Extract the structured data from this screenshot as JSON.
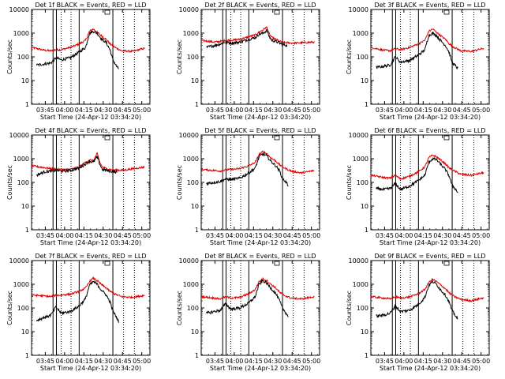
{
  "chart_data": {
    "type": "line",
    "panel_count": 9,
    "xlabel": "Start Time (24-Apr-12 03:34:20)",
    "ylabel": "Counts/sec",
    "x_ticks": [
      "03:45",
      "04:00",
      "04:15",
      "04:30",
      "04:45",
      "05:00"
    ],
    "x_tick_minutes": [
      10.67,
      25.67,
      40.67,
      55.67,
      70.67,
      85.67
    ],
    "x_range_minutes": [
      0,
      92
    ],
    "y_scale": "log",
    "ylim": [
      1,
      10000
    ],
    "y_ticks": [
      "1",
      "10",
      "100",
      "1000",
      "10000"
    ],
    "grid": false,
    "series_colors": {
      "events": "#000000",
      "lld": "#e00000"
    },
    "vertical_solid_minutes": [
      16.7,
      19.3,
      37.0,
      63.2
    ],
    "vertical_dotted_minutes": [
      23.0,
      30.7,
      71.5,
      80.0
    ],
    "panels": [
      {
        "title": "Det 1f BLACK = Events, RED = LLD",
        "events": [
          [
            4,
            45
          ],
          [
            10,
            50
          ],
          [
            15,
            55
          ],
          [
            19,
            90
          ],
          [
            23,
            75
          ],
          [
            30,
            90
          ],
          [
            37,
            160
          ],
          [
            42,
            250
          ],
          [
            45,
            1000
          ],
          [
            48,
            1200
          ],
          [
            51,
            1000
          ],
          [
            54,
            600
          ],
          [
            58,
            400
          ],
          [
            61,
            200
          ],
          [
            63,
            80
          ],
          [
            66,
            40
          ],
          [
            68,
            30
          ]
        ],
        "lld": [
          [
            0,
            250
          ],
          [
            10,
            190
          ],
          [
            15,
            180
          ],
          [
            19,
            200
          ],
          [
            23,
            200
          ],
          [
            30,
            250
          ],
          [
            37,
            350
          ],
          [
            42,
            500
          ],
          [
            45,
            1200
          ],
          [
            48,
            1500
          ],
          [
            51,
            1100
          ],
          [
            54,
            800
          ],
          [
            58,
            550
          ],
          [
            61,
            350
          ],
          [
            65,
            250
          ],
          [
            70,
            180
          ],
          [
            78,
            170
          ],
          [
            88,
            230
          ]
        ]
      },
      {
        "title": "Det 2f BLACK = Events, RED = LLD",
        "events": [
          [
            4,
            250
          ],
          [
            10,
            300
          ],
          [
            15,
            350
          ],
          [
            19,
            420
          ],
          [
            23,
            380
          ],
          [
            30,
            420
          ],
          [
            37,
            550
          ],
          [
            42,
            650
          ],
          [
            45,
            900
          ],
          [
            48,
            1000
          ],
          [
            51,
            1300
          ],
          [
            53,
            700
          ],
          [
            55,
            500
          ],
          [
            58,
            450
          ],
          [
            61,
            380
          ],
          [
            64,
            330
          ],
          [
            67,
            300
          ]
        ],
        "lld": [
          [
            0,
            500
          ],
          [
            10,
            420
          ],
          [
            15,
            450
          ],
          [
            19,
            500
          ],
          [
            23,
            500
          ],
          [
            30,
            550
          ],
          [
            37,
            700
          ],
          [
            42,
            850
          ],
          [
            45,
            1100
          ],
          [
            48,
            1400
          ],
          [
            51,
            1800
          ],
          [
            53,
            900
          ],
          [
            55,
            650
          ],
          [
            58,
            550
          ],
          [
            61,
            450
          ],
          [
            65,
            400
          ],
          [
            72,
            380
          ],
          [
            88,
            420
          ]
        ]
      },
      {
        "title": "Det 3f BLACK = Events, RED = LLD",
        "events": [
          [
            4,
            35
          ],
          [
            10,
            40
          ],
          [
            15,
            45
          ],
          [
            19,
            100
          ],
          [
            23,
            60
          ],
          [
            30,
            70
          ],
          [
            37,
            120
          ],
          [
            42,
            200
          ],
          [
            45,
            800
          ],
          [
            48,
            1000
          ],
          [
            51,
            800
          ],
          [
            54,
            500
          ],
          [
            58,
            300
          ],
          [
            61,
            150
          ],
          [
            63,
            60
          ],
          [
            66,
            40
          ],
          [
            68,
            30
          ]
        ],
        "lld": [
          [
            0,
            250
          ],
          [
            10,
            190
          ],
          [
            15,
            180
          ],
          [
            19,
            220
          ],
          [
            23,
            200
          ],
          [
            30,
            250
          ],
          [
            37,
            350
          ],
          [
            42,
            500
          ],
          [
            45,
            1200
          ],
          [
            48,
            1500
          ],
          [
            51,
            1100
          ],
          [
            54,
            800
          ],
          [
            58,
            550
          ],
          [
            61,
            350
          ],
          [
            65,
            250
          ],
          [
            70,
            180
          ],
          [
            78,
            170
          ],
          [
            88,
            230
          ]
        ]
      },
      {
        "title": "Det 4f BLACK = Events, RED = LLD",
        "events": [
          [
            4,
            200
          ],
          [
            10,
            280
          ],
          [
            15,
            300
          ],
          [
            19,
            320
          ],
          [
            23,
            300
          ],
          [
            30,
            320
          ],
          [
            37,
            400
          ],
          [
            42,
            600
          ],
          [
            45,
            800
          ],
          [
            48,
            700
          ],
          [
            51,
            1200
          ],
          [
            53,
            600
          ],
          [
            55,
            350
          ],
          [
            58,
            330
          ],
          [
            61,
            300
          ],
          [
            64,
            280
          ],
          [
            67,
            260
          ]
        ],
        "lld": [
          [
            0,
            500
          ],
          [
            10,
            420
          ],
          [
            15,
            380
          ],
          [
            19,
            360
          ],
          [
            23,
            340
          ],
          [
            30,
            360
          ],
          [
            37,
            450
          ],
          [
            42,
            700
          ],
          [
            45,
            900
          ],
          [
            48,
            800
          ],
          [
            51,
            1700
          ],
          [
            53,
            700
          ],
          [
            55,
            450
          ],
          [
            58,
            380
          ],
          [
            61,
            350
          ],
          [
            65,
            330
          ],
          [
            72,
            330
          ],
          [
            88,
            450
          ]
        ]
      },
      {
        "title": "Det 5f BLACK = Events, RED = LLD",
        "events": [
          [
            4,
            90
          ],
          [
            10,
            100
          ],
          [
            15,
            110
          ],
          [
            19,
            140
          ],
          [
            23,
            130
          ],
          [
            30,
            150
          ],
          [
            37,
            250
          ],
          [
            42,
            400
          ],
          [
            45,
            1200
          ],
          [
            48,
            1600
          ],
          [
            51,
            1300
          ],
          [
            54,
            800
          ],
          [
            58,
            500
          ],
          [
            61,
            300
          ],
          [
            63,
            150
          ],
          [
            66,
            100
          ],
          [
            68,
            70
          ]
        ],
        "lld": [
          [
            0,
            350
          ],
          [
            10,
            320
          ],
          [
            15,
            300
          ],
          [
            19,
            340
          ],
          [
            23,
            350
          ],
          [
            30,
            380
          ],
          [
            37,
            500
          ],
          [
            42,
            700
          ],
          [
            45,
            1500
          ],
          [
            48,
            2000
          ],
          [
            51,
            1600
          ],
          [
            54,
            1100
          ],
          [
            58,
            800
          ],
          [
            61,
            550
          ],
          [
            65,
            400
          ],
          [
            70,
            300
          ],
          [
            78,
            250
          ],
          [
            88,
            320
          ]
        ]
      },
      {
        "title": "Det 6f BLACK = Events, RED = LLD",
        "events": [
          [
            4,
            55
          ],
          [
            10,
            50
          ],
          [
            15,
            55
          ],
          [
            19,
            90
          ],
          [
            23,
            50
          ],
          [
            30,
            70
          ],
          [
            37,
            120
          ],
          [
            42,
            200
          ],
          [
            45,
            700
          ],
          [
            48,
            1000
          ],
          [
            51,
            900
          ],
          [
            54,
            600
          ],
          [
            58,
            350
          ],
          [
            61,
            180
          ],
          [
            63,
            80
          ],
          [
            66,
            50
          ],
          [
            68,
            35
          ]
        ],
        "lld": [
          [
            0,
            200
          ],
          [
            10,
            160
          ],
          [
            15,
            150
          ],
          [
            19,
            200
          ],
          [
            23,
            140
          ],
          [
            30,
            180
          ],
          [
            37,
            280
          ],
          [
            42,
            450
          ],
          [
            45,
            1100
          ],
          [
            48,
            1400
          ],
          [
            51,
            1200
          ],
          [
            54,
            900
          ],
          [
            58,
            600
          ],
          [
            61,
            400
          ],
          [
            65,
            300
          ],
          [
            70,
            220
          ],
          [
            78,
            200
          ],
          [
            88,
            260
          ]
        ]
      },
      {
        "title": "Det 7f BLACK = Events, RED = LLD",
        "events": [
          [
            4,
            30
          ],
          [
            10,
            40
          ],
          [
            15,
            50
          ],
          [
            19,
            110
          ],
          [
            23,
            60
          ],
          [
            30,
            70
          ],
          [
            37,
            120
          ],
          [
            42,
            250
          ],
          [
            45,
            900
          ],
          [
            48,
            1300
          ],
          [
            51,
            1000
          ],
          [
            54,
            600
          ],
          [
            58,
            350
          ],
          [
            61,
            180
          ],
          [
            63,
            80
          ],
          [
            66,
            40
          ],
          [
            68,
            25
          ]
        ],
        "lld": [
          [
            0,
            350
          ],
          [
            10,
            320
          ],
          [
            15,
            300
          ],
          [
            19,
            340
          ],
          [
            23,
            350
          ],
          [
            30,
            380
          ],
          [
            37,
            500
          ],
          [
            42,
            700
          ],
          [
            45,
            1300
          ],
          [
            48,
            1800
          ],
          [
            51,
            1400
          ],
          [
            54,
            1000
          ],
          [
            58,
            700
          ],
          [
            61,
            500
          ],
          [
            65,
            380
          ],
          [
            70,
            300
          ],
          [
            78,
            280
          ],
          [
            88,
            340
          ]
        ]
      },
      {
        "title": "Det 8f BLACK = Events, RED = LLD",
        "events": [
          [
            4,
            60
          ],
          [
            10,
            70
          ],
          [
            15,
            80
          ],
          [
            19,
            150
          ],
          [
            23,
            90
          ],
          [
            30,
            100
          ],
          [
            37,
            160
          ],
          [
            42,
            300
          ],
          [
            45,
            1000
          ],
          [
            48,
            1400
          ],
          [
            51,
            1100
          ],
          [
            54,
            700
          ],
          [
            58,
            400
          ],
          [
            61,
            200
          ],
          [
            63,
            100
          ],
          [
            66,
            60
          ],
          [
            68,
            40
          ]
        ],
        "lld": [
          [
            0,
            300
          ],
          [
            10,
            260
          ],
          [
            15,
            240
          ],
          [
            19,
            300
          ],
          [
            23,
            260
          ],
          [
            30,
            280
          ],
          [
            37,
            400
          ],
          [
            42,
            600
          ],
          [
            45,
            1300
          ],
          [
            48,
            1700
          ],
          [
            51,
            1400
          ],
          [
            54,
            1000
          ],
          [
            58,
            700
          ],
          [
            61,
            450
          ],
          [
            65,
            330
          ],
          [
            70,
            260
          ],
          [
            78,
            240
          ],
          [
            88,
            300
          ]
        ]
      },
      {
        "title": "Det 9f BLACK = Events, RED = LLD",
        "events": [
          [
            4,
            45
          ],
          [
            10,
            50
          ],
          [
            15,
            60
          ],
          [
            19,
            120
          ],
          [
            23,
            70
          ],
          [
            30,
            80
          ],
          [
            37,
            140
          ],
          [
            42,
            280
          ],
          [
            45,
            900
          ],
          [
            48,
            1300
          ],
          [
            51,
            1000
          ],
          [
            54,
            600
          ],
          [
            58,
            350
          ],
          [
            61,
            170
          ],
          [
            63,
            80
          ],
          [
            66,
            45
          ],
          [
            68,
            30
          ]
        ],
        "lld": [
          [
            0,
            300
          ],
          [
            10,
            260
          ],
          [
            15,
            240
          ],
          [
            19,
            300
          ],
          [
            23,
            260
          ],
          [
            30,
            290
          ],
          [
            37,
            400
          ],
          [
            42,
            600
          ],
          [
            45,
            1200
          ],
          [
            48,
            1600
          ],
          [
            51,
            1300
          ],
          [
            54,
            950
          ],
          [
            58,
            650
          ],
          [
            61,
            420
          ],
          [
            65,
            300
          ],
          [
            70,
            230
          ],
          [
            78,
            200
          ],
          [
            88,
            270
          ]
        ]
      }
    ]
  }
}
